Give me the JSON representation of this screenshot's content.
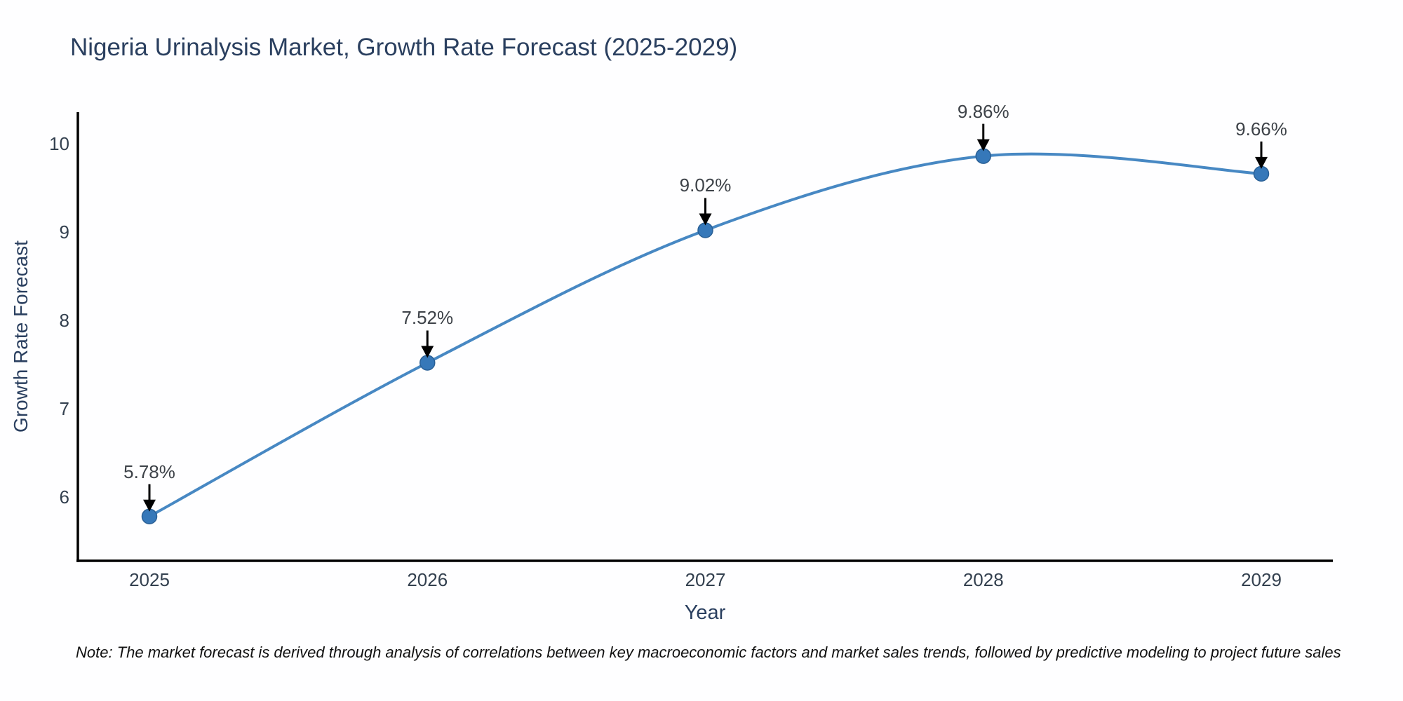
{
  "page": {
    "note": "Note: The market forecast is derived through analysis of correlations between key macroeconomic factors and market sales trends, followed by predictive modeling to project future sales"
  },
  "chart_data": {
    "type": "line",
    "title": "Nigeria Urinalysis Market, Growth Rate Forecast (2025-2029)",
    "xlabel": "Year",
    "ylabel": "Growth Rate Forecast",
    "categories": [
      "2025",
      "2026",
      "2027",
      "2028",
      "2029"
    ],
    "series": [
      {
        "name": "Growth Rate Forecast",
        "values": [
          5.78,
          7.52,
          9.02,
          9.86,
          9.66
        ]
      }
    ],
    "point_labels": [
      "5.78%",
      "7.52%",
      "9.02%",
      "9.86%",
      "9.66%"
    ],
    "yticks": [
      6,
      7,
      8,
      9,
      10
    ],
    "xlim": [
      2024.74,
      2029.26
    ],
    "ylim": [
      5.28,
      10.36
    ],
    "grid": false,
    "legend": "none",
    "line_shape": "spline",
    "marker_style": "circle-with-down-arrow-annotation",
    "colors": {
      "line": "#4788c3",
      "marker": "#3678b9",
      "marker_edge": "#2a6096",
      "arrow": "#000000",
      "axis_line": "#000000",
      "tick_text": "#33404f",
      "title_text": "#2a3f5f",
      "annotation_text": "#3d4248",
      "note_text": "#111111",
      "background": "#fefeff"
    }
  }
}
